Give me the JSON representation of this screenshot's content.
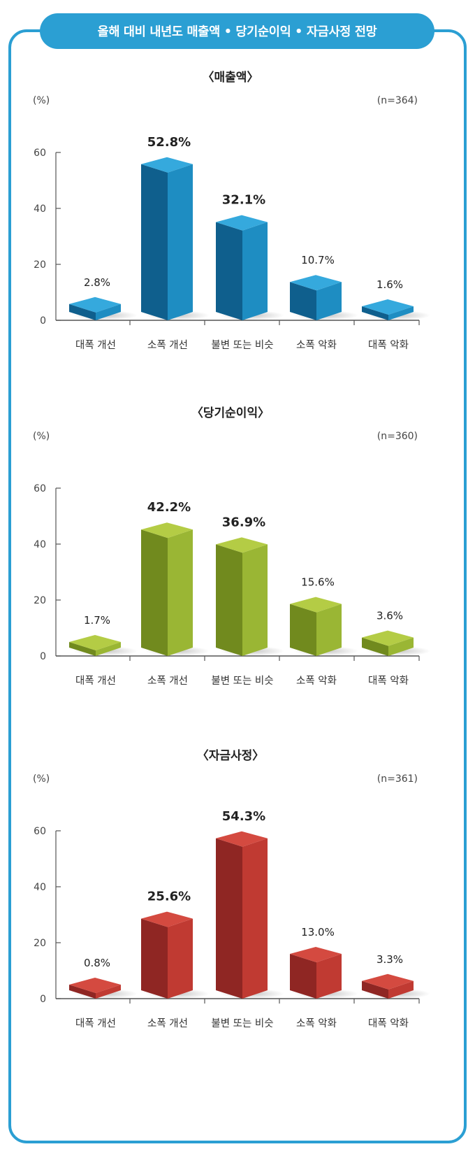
{
  "header": {
    "title": "올해 대비 내년도 매출액 • 당기순이익 • 자금사정 전망"
  },
  "chart_data": [
    {
      "type": "bar",
      "title": "〈매출액〉",
      "unit_label": "(%)",
      "sample_label": "(n=364)",
      "categories": [
        "대폭 개선",
        "소폭 개선",
        "불변 또는 비슷",
        "소폭 악화",
        "대폭 악화"
      ],
      "values": [
        2.8,
        52.8,
        32.1,
        10.7,
        1.6
      ],
      "value_labels": [
        "2.8%",
        "52.8%",
        "32.1%",
        "10.7%",
        "1.6%"
      ],
      "yticks": [
        0,
        20,
        40,
        60
      ],
      "ylim": [
        0,
        60
      ],
      "colors": {
        "front": "#0f5f8d",
        "side": "#1e8dc2",
        "top": "#35a9dd"
      }
    },
    {
      "type": "bar",
      "title": "〈당기순이익〉",
      "unit_label": "(%)",
      "sample_label": "(n=360)",
      "categories": [
        "대폭 개선",
        "소폭 개선",
        "불변 또는 비슷",
        "소폭 악화",
        "대폭 악화"
      ],
      "values": [
        1.7,
        42.2,
        36.9,
        15.6,
        3.6
      ],
      "value_labels": [
        "1.7%",
        "42.2%",
        "36.9%",
        "15.6%",
        "3.6%"
      ],
      "yticks": [
        0,
        20,
        40,
        60
      ],
      "ylim": [
        0,
        60
      ],
      "colors": {
        "front": "#718a1e",
        "side": "#9ab634",
        "top": "#b4cc45"
      }
    },
    {
      "type": "bar",
      "title": "〈자금사정〉",
      "unit_label": "(%)",
      "sample_label": "(n=361)",
      "categories": [
        "대폭 개선",
        "소폭 개선",
        "불변 또는 비슷",
        "소폭 악화",
        "대폭 악화"
      ],
      "values": [
        0.8,
        25.6,
        54.3,
        13.0,
        3.3
      ],
      "value_labels": [
        "0.8%",
        "25.6%",
        "54.3%",
        "13.0%",
        "3.3%"
      ],
      "yticks": [
        0,
        20,
        40,
        60
      ],
      "ylim": [
        0,
        60
      ],
      "colors": {
        "front": "#8f2623",
        "side": "#c03a32",
        "top": "#d44a40"
      }
    }
  ]
}
